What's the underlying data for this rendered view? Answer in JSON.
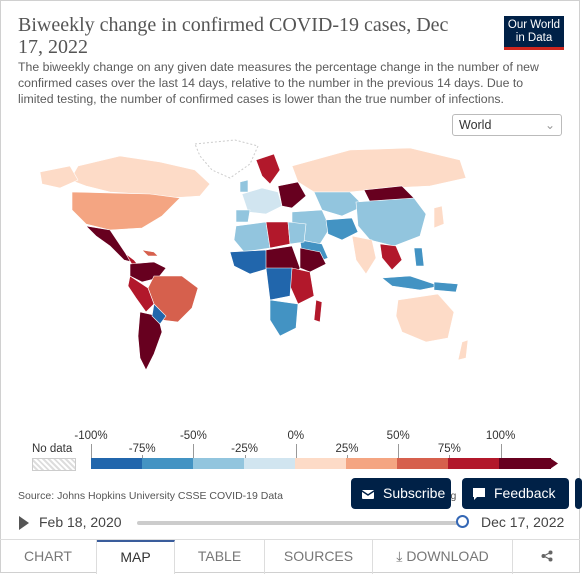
{
  "header": {
    "title": "Biweekly change in confirmed COVID-19 cases, Dec 17, 2022",
    "subtitle": "The biweekly change on any given date measures the percentage change in the number of new confirmed cases over the last 14 days, relative to the number in the previous 14 days. Due to limited testing, the number of confirmed cases is lower than the true number of infections."
  },
  "logo": {
    "line1": "Our World",
    "line2": "in Data"
  },
  "region_select": {
    "value": "World"
  },
  "legend": {
    "no_data_label": "No data",
    "ticks_top": [
      "-100%",
      "-50%",
      "0%",
      "50%",
      "100%"
    ],
    "ticks_bottom": [
      "-75%",
      "-25%",
      "25%",
      "75%"
    ],
    "colors": [
      "#2166ac",
      "#4393c3",
      "#92c5de",
      "#d1e5f0",
      "#fddbc7",
      "#f4a582",
      "#d6604d",
      "#b2182b",
      "#67001f"
    ]
  },
  "source": {
    "text": "Source: Johns Hopkins University CSSE COVID-19 Data",
    "tail": "rg"
  },
  "buttons": {
    "subscribe": "Subscribe",
    "feedback": "Feedback"
  },
  "timeline": {
    "start_date": "Feb 18, 2020",
    "end_date": "Dec 17, 2022",
    "position": 1.0
  },
  "tabs": [
    "CHART",
    "MAP",
    "TABLE",
    "SOURCES",
    "DOWNLOAD"
  ],
  "icons": {
    "download": "download-icon",
    "share": "share-icon",
    "subscribe": "envelope-icon",
    "feedback": "chat-bubble-icon"
  }
}
